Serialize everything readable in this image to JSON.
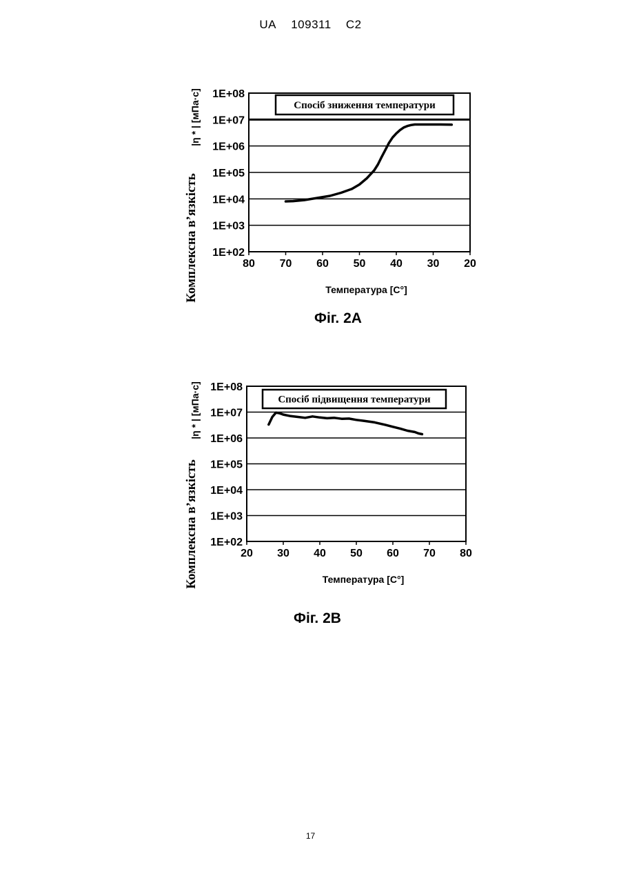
{
  "header": {
    "country": "UA",
    "number": "109311",
    "kind": "C2"
  },
  "page_number": "17",
  "figures": [
    {
      "caption": "Фіг. 2А",
      "ylabel_main": "Комплексна в’язкість",
      "ylabel_unit": "|η * | [мПа·с]"
    },
    {
      "caption": "Фіг. 2В",
      "ylabel_main": "Комплексна в’язкість",
      "ylabel_unit": "|η * | [мПа·с]"
    }
  ],
  "chart_data": [
    {
      "type": "line",
      "title": "Спосіб зниження температури",
      "xlabel": "Температура [С°]",
      "ylabel": "Комплексна в’язкість |η * | [мПа·с]",
      "x_ticks": [
        "80",
        "70",
        "60",
        "50",
        "40",
        "30",
        "20"
      ],
      "y_ticks": [
        "1E+02",
        "1E+03",
        "1E+04",
        "1E+05",
        "1E+06",
        "1E+07",
        "1E+08"
      ],
      "xlim": [
        80,
        20
      ],
      "ylim": [
        100,
        100000000
      ],
      "y_scale": "log",
      "grid": "horizontal",
      "x": [
        70,
        68,
        65,
        62,
        58,
        55,
        52,
        50,
        48,
        46,
        45,
        44,
        43,
        42,
        41,
        40,
        39,
        38,
        37,
        36,
        35,
        33,
        30,
        28,
        25
      ],
      "values": [
        8000,
        8200,
        9000,
        10500,
        13000,
        17000,
        24000,
        35000,
        60000,
        120000,
        200000,
        380000,
        700000,
        1300000,
        2100000,
        3000000,
        4000000,
        5000000,
        5700000,
        6200000,
        6500000,
        6500000,
        6500000,
        6500000,
        6400000
      ]
    },
    {
      "type": "line",
      "title": "Спосіб підвищення температури",
      "xlabel": "Температура [С°]",
      "ylabel": "Комплексна в’язкість |η * | [мПа·с]",
      "x_ticks": [
        "20",
        "30",
        "40",
        "50",
        "60",
        "70",
        "80"
      ],
      "y_ticks": [
        "1E+02",
        "1E+03",
        "1E+04",
        "1E+05",
        "1E+06",
        "1E+07",
        "1E+08"
      ],
      "xlim": [
        20,
        80
      ],
      "ylim": [
        100,
        100000000
      ],
      "y_scale": "log",
      "grid": "horizontal",
      "x": [
        26,
        27,
        28,
        29,
        30,
        32,
        34,
        36,
        38,
        40,
        42,
        44,
        46,
        48,
        50,
        52,
        55,
        58,
        60,
        62,
        64,
        66,
        67,
        68
      ],
      "values": [
        3300000,
        6500000,
        9500000,
        9000000,
        8000000,
        7000000,
        6500000,
        6000000,
        6800000,
        6200000,
        5800000,
        6000000,
        5500000,
        5600000,
        5000000,
        4600000,
        4000000,
        3200000,
        2700000,
        2300000,
        1900000,
        1700000,
        1500000,
        1400000
      ]
    }
  ]
}
